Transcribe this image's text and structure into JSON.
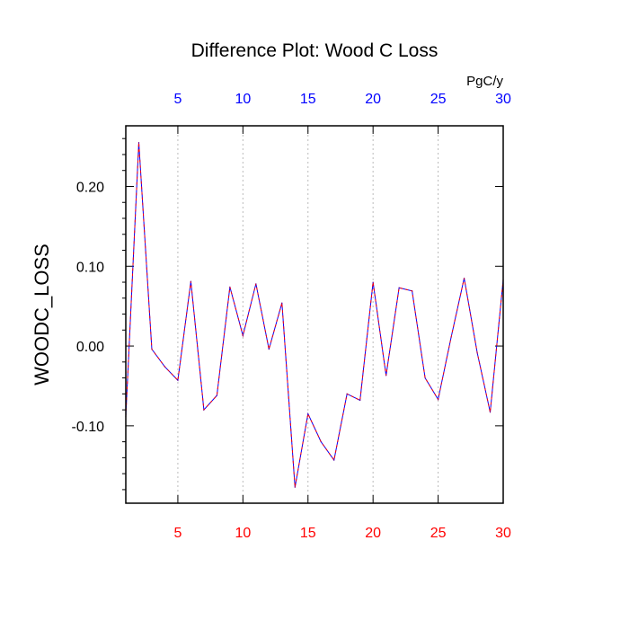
{
  "chart_data": {
    "type": "line",
    "title": "Difference Plot: Wood C Loss",
    "units": "PgC/y",
    "ylabel": "WOODC_LOSS",
    "xlabel": "",
    "xlim": [
      1,
      30
    ],
    "ylim": [
      -0.197,
      0.276
    ],
    "xticks": [
      5,
      10,
      15,
      20,
      25,
      30
    ],
    "xtick_labels": [
      "5",
      "10",
      "15",
      "20",
      "25",
      "30"
    ],
    "yticks": [
      -0.1,
      0.0,
      0.1,
      0.2
    ],
    "ytick_labels": [
      "-0.10",
      "0.00",
      "0.10",
      "0.20"
    ],
    "grid": "vertical dotted at x ticks",
    "colors": {
      "line_red": "#ff0000",
      "line_blue": "#0000ff",
      "bottom_ticks": "#ff0000",
      "top_ticks": "#0000ff",
      "grid": "#bbbbbb"
    },
    "series": [
      {
        "x": [
          1,
          2,
          3,
          4,
          5,
          6,
          7,
          8,
          9,
          10,
          11,
          12,
          13,
          14,
          15,
          16,
          17,
          18,
          19,
          20,
          21,
          22,
          23,
          24,
          25,
          26,
          27,
          28,
          29,
          30
        ],
        "values": [
          -0.088,
          0.255,
          -0.004,
          -0.026,
          -0.043,
          0.081,
          -0.08,
          -0.062,
          0.074,
          0.013,
          0.078,
          -0.004,
          0.054,
          -0.177,
          -0.085,
          -0.12,
          -0.143,
          -0.06,
          -0.068,
          0.08,
          -0.037,
          0.073,
          0.069,
          -0.04,
          -0.067,
          0.011,
          0.085,
          -0.008,
          -0.083,
          0.083
        ]
      }
    ]
  }
}
